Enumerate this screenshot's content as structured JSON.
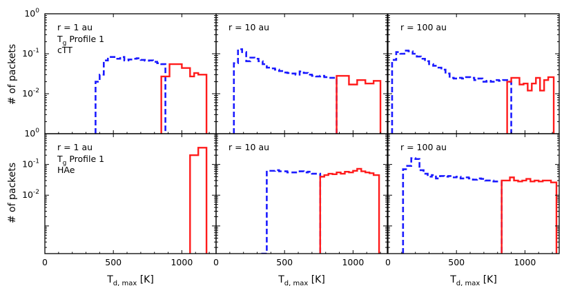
{
  "chart_data": {
    "type": "step-histogram",
    "ylabel": "# of packets",
    "xlabel_main": "T",
    "xlabel_sub": "d, max",
    "xlabel_unit": "[K]",
    "xlim": [
      0,
      1250
    ],
    "x_ticks": [
      "0",
      "500",
      "1000"
    ],
    "y_ticks_top": [
      {
        "base": "10",
        "exp": "-2",
        "v": -2
      },
      {
        "base": "10",
        "exp": "-1",
        "v": -1
      },
      {
        "base": "10",
        "exp": "0",
        "v": 0
      }
    ],
    "y_ticks_bottom": [
      {
        "base": "10",
        "exp": "-2",
        "v": -2
      },
      {
        "base": "10",
        "exp": "-1",
        "v": -1
      },
      {
        "base": "10",
        "exp": "0",
        "v": 0
      }
    ],
    "colors": {
      "blue": "#1a1aff",
      "red": "#ff1a1a"
    },
    "panels": [
      {
        "row": 0,
        "col": 0,
        "ylim_log10": [
          -3,
          0
        ],
        "label_r": "r = 1 au",
        "label_t": "T",
        "label_t_sub": "g",
        "label_t_rest": " Profile 1",
        "label_star": "cTT",
        "blue": {
          "edges": [
            370,
            400,
            430,
            460,
            490,
            520,
            550,
            580,
            610,
            640,
            670,
            700,
            730,
            760,
            790,
            820,
            850,
            880
          ],
          "values": [
            0.02,
            0.03,
            0.068,
            0.083,
            0.083,
            0.075,
            0.083,
            0.068,
            0.072,
            0.075,
            0.077,
            0.07,
            0.067,
            0.068,
            0.063,
            0.058,
            0.055
          ]
        },
        "red": {
          "edges": [
            850,
            880,
            910,
            940,
            970,
            1000,
            1030,
            1060,
            1090,
            1120,
            1150,
            1180
          ],
          "values": [
            0.027,
            0.027,
            0.055,
            0.055,
            0.055,
            0.044,
            0.044,
            0.027,
            0.033,
            0.03,
            0.03
          ]
        }
      },
      {
        "row": 0,
        "col": 1,
        "ylim_log10": [
          -3,
          0
        ],
        "label_r": "r = 10 au",
        "blue": {
          "edges": [
            130,
            160,
            190,
            220,
            250,
            280,
            310,
            340,
            370,
            400,
            430,
            460,
            490,
            520,
            550,
            580,
            610,
            640,
            670,
            700,
            730,
            760,
            790,
            820,
            850,
            880
          ],
          "values": [
            0.058,
            0.13,
            0.11,
            0.065,
            0.08,
            0.075,
            0.065,
            0.055,
            0.045,
            0.043,
            0.04,
            0.037,
            0.034,
            0.033,
            0.032,
            0.03,
            0.036,
            0.033,
            0.03,
            0.028,
            0.027,
            0.028,
            0.026,
            0.025,
            0.025
          ]
        },
        "red": {
          "edges": [
            880,
            940,
            970,
            1030,
            1090,
            1150,
            1200
          ],
          "values": [
            0.028,
            0.028,
            0.017,
            0.022,
            0.018,
            0.021
          ]
        }
      },
      {
        "row": 0,
        "col": 2,
        "ylim_log10": [
          -3,
          0
        ],
        "label_r": "r = 100 au",
        "blue": {
          "edges": [
            30,
            60,
            90,
            120,
            150,
            180,
            210,
            240,
            270,
            300,
            330,
            360,
            390,
            420,
            450,
            480,
            510,
            540,
            570,
            600,
            630,
            660,
            690,
            720,
            750,
            780,
            810,
            840,
            870,
            900
          ],
          "values": [
            0.07,
            0.11,
            0.1,
            0.12,
            0.115,
            0.1,
            0.085,
            0.075,
            0.065,
            0.055,
            0.05,
            0.045,
            0.04,
            0.032,
            0.025,
            0.024,
            0.025,
            0.024,
            0.026,
            0.025,
            0.022,
            0.024,
            0.02,
            0.021,
            0.02,
            0.022,
            0.021,
            0.022,
            0.02
          ]
        },
        "red": {
          "edges": [
            870,
            900,
            930,
            960,
            990,
            1020,
            1050,
            1080,
            1110,
            1140,
            1170,
            1210
          ],
          "values": [
            0.02,
            0.025,
            0.025,
            0.017,
            0.018,
            0.012,
            0.018,
            0.025,
            0.012,
            0.022,
            0.026
          ]
        }
      },
      {
        "row": 1,
        "col": 0,
        "ylim_log10": [
          -3.9,
          0
        ],
        "label_r": "r = 1 au",
        "label_t": "T",
        "label_t_sub": "g",
        "label_t_rest": " Profile 1",
        "label_star": "HAe",
        "blue": {
          "edges": [],
          "values": []
        },
        "red": {
          "edges": [
            1060,
            1120,
            1150,
            1180
          ],
          "values": [
            0.2,
            0.35,
            0.35
          ]
        }
      },
      {
        "row": 1,
        "col": 1,
        "ylim_log10": [
          -3.9,
          0
        ],
        "label_r": "r = 10 au",
        "blue": {
          "edges": [
            330,
            370,
            400,
            430,
            460,
            490,
            520,
            550,
            580,
            610,
            640,
            670,
            700,
            730,
            760
          ],
          "values": [
            0.0001,
            0.062,
            0.062,
            0.065,
            0.06,
            0.06,
            0.055,
            0.055,
            0.055,
            0.06,
            0.055,
            0.058,
            0.05,
            0.05
          ]
        },
        "red": {
          "edges": [
            760,
            790,
            820,
            850,
            880,
            910,
            940,
            970,
            1000,
            1030,
            1060,
            1090,
            1120,
            1150,
            1190
          ],
          "values": [
            0.04,
            0.045,
            0.05,
            0.048,
            0.055,
            0.05,
            0.058,
            0.055,
            0.062,
            0.072,
            0.06,
            0.055,
            0.052,
            0.045
          ]
        }
      },
      {
        "row": 1,
        "col": 2,
        "ylim_log10": [
          -3.9,
          0
        ],
        "label_r": "r = 100 au",
        "blue": {
          "edges": [
            110,
            140,
            170,
            200,
            230,
            260,
            290,
            320,
            350,
            380,
            410,
            440,
            470,
            500,
            530,
            560,
            590,
            620,
            650,
            680,
            710,
            740,
            770,
            800,
            830
          ],
          "values": [
            0.07,
            0.09,
            0.16,
            0.15,
            0.065,
            0.05,
            0.04,
            0.045,
            0.035,
            0.042,
            0.04,
            0.042,
            0.038,
            0.04,
            0.035,
            0.038,
            0.035,
            0.032,
            0.035,
            0.034,
            0.03,
            0.03,
            0.028,
            0.028
          ]
        },
        "red": {
          "edges": [
            830,
            860,
            890,
            920,
            950,
            980,
            1010,
            1040,
            1070,
            1100,
            1130,
            1160,
            1190,
            1230
          ],
          "values": [
            0.03,
            0.03,
            0.038,
            0.03,
            0.028,
            0.03,
            0.034,
            0.028,
            0.03,
            0.028,
            0.03,
            0.03,
            0.026
          ]
        }
      }
    ]
  }
}
